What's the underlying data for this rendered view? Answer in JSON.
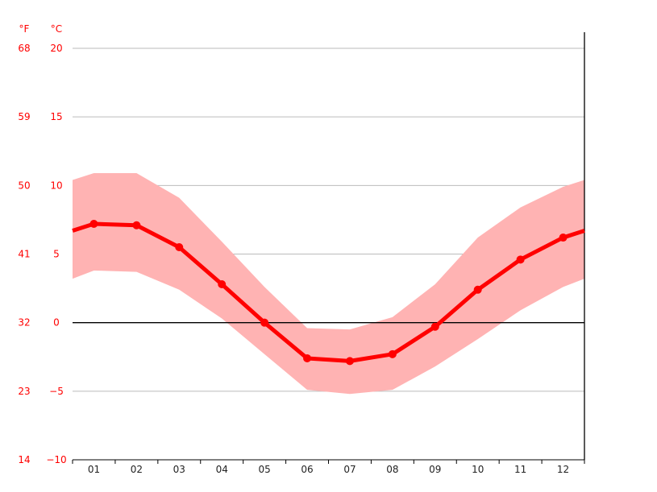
{
  "chart_data": {
    "type": "line",
    "units": {
      "fahrenheit": "°F",
      "celsius": "°C"
    },
    "categories": [
      "01",
      "02",
      "03",
      "04",
      "05",
      "06",
      "07",
      "08",
      "09",
      "10",
      "11",
      "12"
    ],
    "celsius_ticks": [
      20,
      15,
      10,
      5,
      0,
      -5,
      -10
    ],
    "fahrenheit_ticks": [
      68,
      59,
      50,
      41,
      32,
      23,
      14
    ],
    "ylim": [
      -10,
      20
    ],
    "grid": true,
    "series": [
      {
        "values": [
          7.2,
          7.1,
          5.5,
          2.8,
          0.0,
          -2.6,
          -2.8,
          -2.3,
          -0.3,
          2.4,
          4.6,
          6.2
        ]
      }
    ],
    "band": {
      "upper": [
        10.9,
        10.9,
        9.1,
        5.9,
        2.6,
        -0.4,
        -0.5,
        0.4,
        2.8,
        6.2,
        8.4,
        9.9
      ],
      "lower": [
        3.8,
        3.7,
        2.4,
        0.3,
        -2.3,
        -4.9,
        -5.2,
        -4.9,
        -3.2,
        -1.2,
        0.9,
        2.6
      ]
    },
    "colors": {
      "line": "#ff0000",
      "band": "#ffb3b3",
      "grid": "#bbbbbb",
      "axis": "#000000",
      "zero": "#000000",
      "tick_text": "#ff0000",
      "x_text": "#222222"
    }
  }
}
